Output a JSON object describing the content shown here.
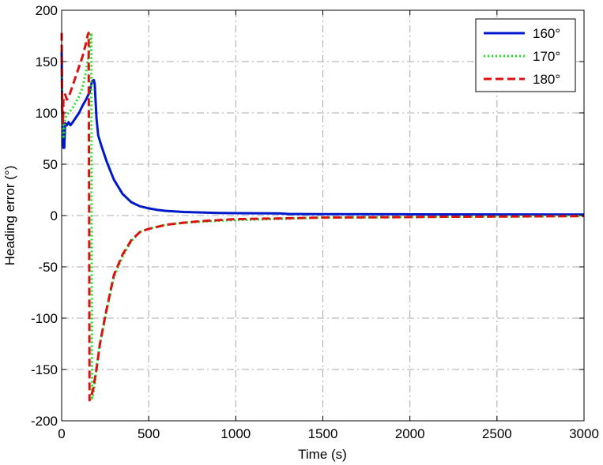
{
  "chart_data": {
    "type": "line",
    "title": "",
    "xlabel": "Time (s)",
    "ylabel": "Heading error (°)",
    "xlim": [
      0,
      3000
    ],
    "ylim": [
      -200,
      200
    ],
    "xticks": [
      0,
      500,
      1000,
      1500,
      2000,
      2500,
      3000
    ],
    "yticks": [
      -200,
      -150,
      -100,
      -50,
      0,
      50,
      100,
      150,
      200
    ],
    "xtick_labels": [
      "0",
      "500",
      "1000",
      "1500",
      "2000",
      "2500",
      "3000"
    ],
    "ytick_labels": [
      "-200",
      "-150",
      "-100",
      "-50",
      "0",
      "50",
      "100",
      "150",
      "200"
    ],
    "grid": true,
    "legend_position": "top-right",
    "series": [
      {
        "name": "160°",
        "color": "#0018cc",
        "style": "solid",
        "x": [
          0,
          5,
          10,
          15,
          20,
          30,
          40,
          50,
          60,
          80,
          100,
          120,
          140,
          160,
          175,
          185,
          190,
          200,
          210,
          230,
          260,
          300,
          350,
          400,
          450,
          500,
          550,
          600,
          700,
          800,
          900,
          1000,
          1100,
          1200,
          1260,
          1300,
          1500,
          2000,
          2500,
          3000
        ],
        "y": [
          160,
          80,
          66,
          66,
          90,
          88,
          91,
          88,
          90,
          95,
          100,
          107,
          113,
          120,
          131,
          132,
          128,
          95,
          78,
          67,
          52,
          35,
          21,
          13,
          9,
          7,
          5.5,
          4.5,
          3.5,
          3,
          2.5,
          2.3,
          2.2,
          2.1,
          2.0,
          1.5,
          1.3,
          1.2,
          1.1,
          1.0
        ]
      },
      {
        "name": "170°",
        "color": "#22dd22",
        "style": "dotted",
        "x": [
          0,
          5,
          10,
          20,
          40,
          60,
          80,
          100,
          120,
          140,
          160,
          170,
          172,
          175,
          180,
          190,
          200,
          220,
          250,
          280,
          300,
          350,
          400,
          450,
          500,
          600,
          700,
          800,
          900,
          1000,
          1200,
          1500,
          2000,
          2200,
          2500,
          3000
        ],
        "y": [
          135,
          85,
          75,
          95,
          100,
          104,
          110,
          116,
          125,
          140,
          162,
          178,
          0,
          -178,
          -175,
          -165,
          -148,
          -125,
          -100,
          -75,
          -60,
          -40,
          -25,
          -16,
          -13,
          -9,
          -7,
          -6,
          -5,
          -4.5,
          -3.5,
          -2,
          -1.5,
          -1.2,
          -1,
          -0.5
        ]
      },
      {
        "name": "180°",
        "color": "#dd1111",
        "style": "dashed",
        "x": [
          0,
          3,
          8,
          10,
          20,
          30,
          40,
          60,
          80,
          100,
          120,
          140,
          150,
          155,
          158,
          160,
          165,
          180,
          200,
          220,
          250,
          280,
          300,
          350,
          400,
          450,
          500,
          600,
          700,
          800,
          900,
          1000,
          1200,
          1500,
          2000,
          2200,
          2500,
          3000
        ],
        "y": [
          178,
          100,
          90,
          112,
          118,
          113,
          115,
          125,
          135,
          145,
          155,
          168,
          176,
          178,
          0,
          -180,
          -178,
          -170,
          -150,
          -125,
          -98,
          -74,
          -58,
          -38,
          -24,
          -16,
          -13,
          -9,
          -7,
          -5.5,
          -4.5,
          -3.5,
          -3,
          -2,
          -1.5,
          -1.2,
          -1,
          -0.5
        ]
      }
    ]
  }
}
